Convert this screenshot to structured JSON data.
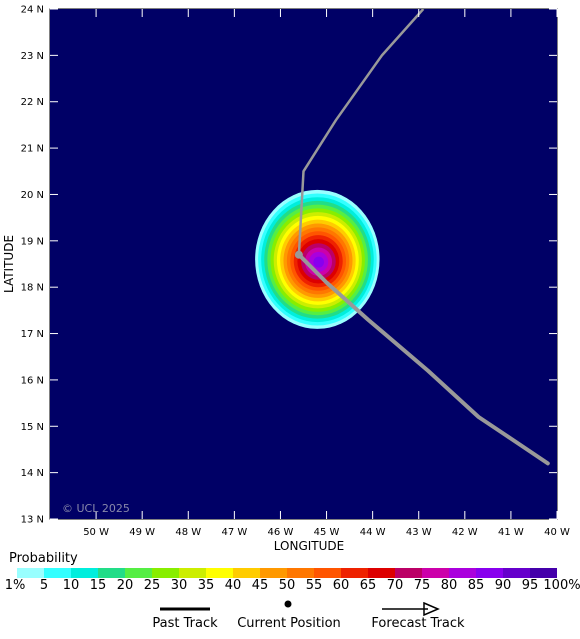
{
  "map": {
    "background_color": "#000066",
    "watermark": "© UCL 2025",
    "x_axis_label": "LONGITUDE",
    "y_axis_label": "LATITUDE",
    "lon_range": [
      -51,
      -40
    ],
    "lat_range": [
      13,
      24
    ],
    "x_ticks": [
      "50 W",
      "49 W",
      "48 W",
      "47 W",
      "46 W",
      "45 W",
      "44 W",
      "43 W",
      "42 W",
      "41 W",
      "40 W"
    ],
    "y_ticks": [
      "24 N",
      "23 N",
      "22 N",
      "21 N",
      "20 N",
      "19 N",
      "18 N",
      "17 N",
      "16 N",
      "15 N",
      "14 N",
      "13 N"
    ],
    "current_position": {
      "lon": -45.6,
      "lat": 18.7
    },
    "past_track": [
      {
        "lon": -45.6,
        "lat": 18.7
      },
      {
        "lon": -45.5,
        "lat": 20.5
      },
      {
        "lon": -44.8,
        "lat": 21.6
      },
      {
        "lon": -43.8,
        "lat": 23.0
      },
      {
        "lon": -42.9,
        "lat": 24.0
      }
    ],
    "forecast_track": [
      {
        "lon": -45.6,
        "lat": 18.7
      },
      {
        "lon": -45.0,
        "lat": 18.1
      },
      {
        "lon": -44.1,
        "lat": 17.3
      },
      {
        "lon": -42.8,
        "lat": 16.2
      },
      {
        "lon": -41.7,
        "lat": 15.2
      },
      {
        "lon": -41.1,
        "lat": 14.8
      },
      {
        "lon": -40.2,
        "lat": 14.2
      }
    ],
    "probability_field": {
      "center": {
        "lon": -45.2,
        "lat": 18.6
      },
      "peak_percent": 90,
      "extent_1pct": {
        "lon": [
          -46.3,
          -43.6
        ],
        "lat": [
          17.1,
          20.1
        ]
      }
    },
    "track_color": "#999999"
  },
  "probability_scale": {
    "title": "Probability",
    "labels": [
      "1%",
      "5",
      "10",
      "15",
      "20",
      "25",
      "30",
      "35",
      "40",
      "45",
      "50",
      "55",
      "60",
      "65",
      "70",
      "75",
      "80",
      "85",
      "90",
      "95",
      "100%"
    ],
    "colors": [
      "#99ffff",
      "#33ffff",
      "#00eedd",
      "#22dd88",
      "#55ee44",
      "#88ee00",
      "#ccee00",
      "#ffff00",
      "#ffcc00",
      "#ff9900",
      "#ff7700",
      "#ff5500",
      "#ee2200",
      "#dd0000",
      "#bb0066",
      "#cc00aa",
      "#aa00dd",
      "#8800ee",
      "#6600cc",
      "#4400aa"
    ]
  },
  "legend": {
    "past_track": "Past Track",
    "current_position": "Current Position",
    "forecast_track": "Forecast Track"
  }
}
